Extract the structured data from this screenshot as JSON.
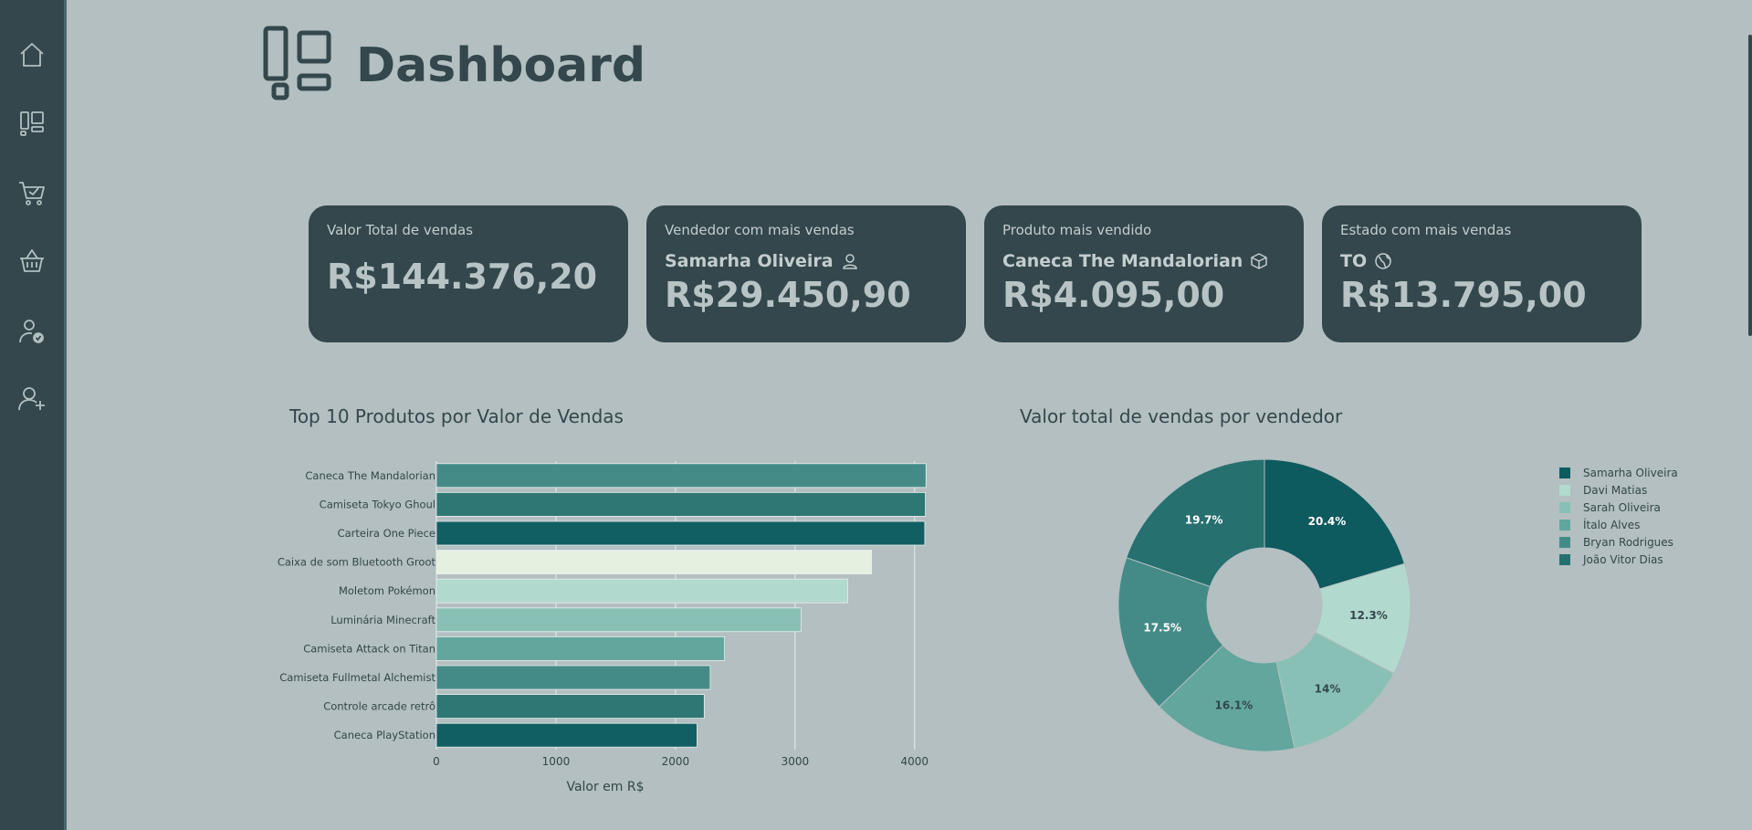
{
  "sidebar": {
    "items": [
      {
        "name": "home",
        "icon": "home-icon"
      },
      {
        "name": "dashboard",
        "icon": "dashboard-icon"
      },
      {
        "name": "sales",
        "icon": "cart-check-icon"
      },
      {
        "name": "products",
        "icon": "basket-icon"
      },
      {
        "name": "sellers",
        "icon": "user-check-icon"
      },
      {
        "name": "add-user",
        "icon": "user-plus-icon"
      }
    ]
  },
  "header": {
    "title": "Dashboard",
    "icon": "dashboard-icon"
  },
  "cards": [
    {
      "label": "Valor Total de vendas",
      "sub": "",
      "value": "R$144.376,20"
    },
    {
      "label": "Vendedor com mais vendas",
      "sub": "Samarha Oliveira",
      "sub_icon": "user-icon",
      "value": "R$29.450,90"
    },
    {
      "label": "Produto mais vendido",
      "sub": "Caneca The Mandalorian",
      "sub_icon": "box-icon",
      "value": "R$4.095,00"
    },
    {
      "label": "Estado com mais vendas",
      "sub": "TO",
      "sub_icon": "globe-icon",
      "value": "R$13.795,00"
    }
  ],
  "chart_data": [
    {
      "type": "bar",
      "orientation": "horizontal",
      "title": "Top 10 Produtos por Valor de Vendas",
      "xlabel": "Valor em R$",
      "ylabel": "",
      "xlim": [
        0,
        4200
      ],
      "xticks": [
        0,
        1000,
        2000,
        3000,
        4000
      ],
      "grid": true,
      "categories": [
        "Caneca The Mandalorian",
        "Camiseta Tokyo Ghoul",
        "Carteira One Piece",
        "Caixa de som Bluetooth Groot",
        "Moletom Pokémon",
        "Luminária Minecraft",
        "Camiseta Attack on Titan",
        "Camiseta Fullmetal Alchemist",
        "Controle arcade retrô",
        "Caneca PlayStation"
      ],
      "values": [
        4095,
        4090,
        4085,
        3640,
        3440,
        3050,
        2410,
        2290,
        2240,
        2180
      ],
      "colors": [
        "#448b88",
        "#2f7775",
        "#125f63",
        "#e5f0e1",
        "#b2d9cd",
        "#89c0b5",
        "#62a69e",
        "#448b88",
        "#2f7775",
        "#125f63"
      ]
    },
    {
      "type": "pie",
      "donut": true,
      "title": "Valor total de vendas por vendedor",
      "legend": "right",
      "labels": [
        "Samarha Oliveira",
        "Davi Matias",
        "Sarah Oliveira",
        "Ítalo Alves",
        "Bryan Rodrigues",
        "João Vitor Dias"
      ],
      "values": [
        20.4,
        12.3,
        14,
        16.1,
        17.5,
        19.7
      ],
      "display_labels": [
        "20.4%",
        "12.3%",
        "14%",
        "16.1%",
        "17.5%",
        "19.7%"
      ],
      "colors": [
        "#0d5a5f",
        "#b2d9cd",
        "#89c0b5",
        "#62a69e",
        "#448b88",
        "#26706f"
      ],
      "label_colors": [
        "#ffffff",
        "#33474c",
        "#33474c",
        "#33474c",
        "#ffffff",
        "#ffffff"
      ]
    }
  ]
}
